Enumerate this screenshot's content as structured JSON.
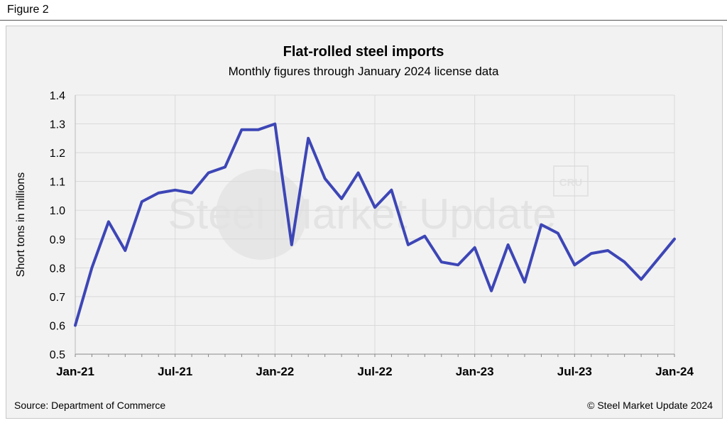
{
  "figure_label": "Figure 2",
  "source": "Source: Department of Commerce",
  "copyright": "© Steel Market Update 2024",
  "watermark": {
    "text": "Steel Market Update",
    "badge": "CRU"
  },
  "colors": {
    "line": "#3d46b6",
    "grid": "#d9d9d9",
    "panel": "#f2f2f2"
  },
  "chart_data": {
    "type": "line",
    "title": "Flat-rolled steel imports",
    "subtitle": "Monthly figures through January 2024 license data",
    "xlabel": "",
    "ylabel": "Short tons in millions",
    "ylim": [
      0.5,
      1.4
    ],
    "yticks": [
      "0.5",
      "0.6",
      "0.7",
      "0.8",
      "0.9",
      "1.0",
      "1.1",
      "1.2",
      "1.3",
      "1.4"
    ],
    "xtick_labels": [
      {
        "index": 0,
        "label": "Jan-21"
      },
      {
        "index": 6,
        "label": "Jul-21"
      },
      {
        "index": 12,
        "label": "Jan-22"
      },
      {
        "index": 18,
        "label": "Jul-22"
      },
      {
        "index": 24,
        "label": "Jan-23"
      },
      {
        "index": 30,
        "label": "Jul-23"
      },
      {
        "index": 36,
        "label": "Jan-24"
      }
    ],
    "grid": true,
    "series": [
      {
        "name": "Flat-rolled steel imports",
        "categories": [
          "Jan-21",
          "Feb-21",
          "Mar-21",
          "Apr-21",
          "May-21",
          "Jun-21",
          "Jul-21",
          "Aug-21",
          "Sep-21",
          "Oct-21",
          "Nov-21",
          "Dec-21",
          "Jan-22",
          "Feb-22",
          "Mar-22",
          "Apr-22",
          "May-22",
          "Jun-22",
          "Jul-22",
          "Aug-22",
          "Sep-22",
          "Oct-22",
          "Nov-22",
          "Dec-22",
          "Jan-23",
          "Feb-23",
          "Mar-23",
          "Apr-23",
          "May-23",
          "Jun-23",
          "Jul-23",
          "Aug-23",
          "Sep-23",
          "Oct-23",
          "Nov-23",
          "Dec-23",
          "Jan-24"
        ],
        "values": [
          0.6,
          0.8,
          0.96,
          0.86,
          1.03,
          1.06,
          1.07,
          1.06,
          1.13,
          1.15,
          1.28,
          1.28,
          1.3,
          0.88,
          1.25,
          1.11,
          1.04,
          1.13,
          1.01,
          1.07,
          0.88,
          0.91,
          0.82,
          0.81,
          0.87,
          0.72,
          0.88,
          0.75,
          0.95,
          0.92,
          0.81,
          0.85,
          0.86,
          0.82,
          0.76,
          0.83,
          0.9
        ]
      }
    ]
  }
}
